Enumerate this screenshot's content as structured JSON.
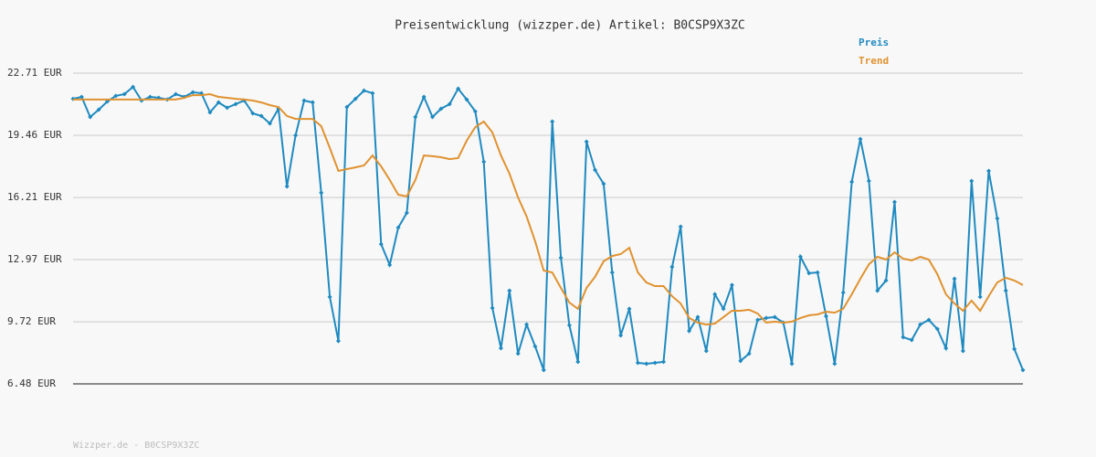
{
  "chart_data": {
    "type": "line",
    "title": "Preisentwicklung (wizzper.de) Artikel: B0CSP9X3ZC",
    "footer": "Wizzper.de - B0CSP9X3ZC",
    "ylim": [
      6.48,
      22.71
    ],
    "yticks": [
      {
        "value": 6.48,
        "label": "6.48 EUR"
      },
      {
        "value": 9.72,
        "label": "9.72 EUR"
      },
      {
        "value": 12.97,
        "label": "12.97 EUR"
      },
      {
        "value": 16.21,
        "label": "16.21 EUR"
      },
      {
        "value": 19.46,
        "label": "19.46 EUR"
      },
      {
        "value": 22.71,
        "label": "22.71 EUR"
      }
    ],
    "grid": true,
    "legend": "top-right",
    "series": [
      {
        "name": "Preis",
        "color": "#1f8ac0",
        "markers": true,
        "values": [
          21.37,
          21.47,
          20.42,
          20.8,
          21.23,
          21.52,
          21.61,
          21.99,
          21.28,
          21.47,
          21.42,
          21.33,
          21.61,
          21.47,
          21.71,
          21.66,
          20.66,
          21.18,
          20.9,
          21.09,
          21.28,
          20.61,
          20.47,
          20.08,
          20.85,
          16.79,
          19.46,
          21.28,
          21.18,
          16.46,
          11.02,
          8.72,
          20.94,
          21.37,
          21.8,
          21.66,
          13.78,
          12.69,
          14.64,
          15.41,
          20.42,
          21.47,
          20.42,
          20.85,
          21.09,
          21.9,
          21.33,
          20.71,
          18.08,
          10.44,
          8.34,
          11.35,
          8.06,
          9.58,
          8.44,
          7.2,
          20.18,
          13.07,
          9.54,
          7.63,
          19.13,
          17.65,
          16.93,
          12.3,
          9.01,
          10.4,
          7.58,
          7.53,
          7.58,
          7.63,
          12.59,
          14.69,
          9.25,
          9.97,
          8.2,
          11.16,
          10.4,
          11.64,
          7.68,
          8.06,
          9.82,
          9.92,
          9.97,
          9.68,
          7.53,
          13.12,
          12.26,
          12.3,
          10.01,
          7.53,
          11.25,
          17.03,
          19.27,
          17.08,
          11.35,
          11.88,
          15.98,
          8.92,
          8.77,
          9.58,
          9.82,
          9.35,
          8.34,
          11.97,
          8.2,
          17.08,
          11.02,
          17.6,
          15.12,
          11.35,
          8.3,
          7.2
        ]
      },
      {
        "name": "Trend",
        "color": "#e0922f",
        "markers": false,
        "values": [
          21.33,
          21.33,
          21.33,
          21.33,
          21.33,
          21.33,
          21.33,
          21.33,
          21.33,
          21.33,
          21.33,
          21.33,
          21.33,
          21.42,
          21.56,
          21.56,
          21.61,
          21.47,
          21.42,
          21.37,
          21.33,
          21.28,
          21.18,
          21.04,
          20.94,
          20.47,
          20.32,
          20.32,
          20.32,
          19.94,
          18.8,
          17.6,
          17.7,
          17.79,
          17.89,
          18.41,
          17.84,
          17.13,
          16.36,
          16.27,
          17.13,
          18.41,
          18.37,
          18.32,
          18.22,
          18.27,
          19.18,
          19.89,
          20.18,
          19.61,
          18.41,
          17.46,
          16.22,
          15.22,
          13.93,
          12.4,
          12.3,
          11.49,
          10.73,
          10.4,
          11.49,
          12.07,
          12.88,
          13.16,
          13.26,
          13.59,
          12.3,
          11.78,
          11.59,
          11.59,
          11.06,
          10.68,
          9.92,
          9.68,
          9.58,
          9.63,
          9.97,
          10.3,
          10.3,
          10.35,
          10.16,
          9.68,
          9.73,
          9.68,
          9.73,
          9.92,
          10.06,
          10.11,
          10.25,
          10.2,
          10.4,
          11.16,
          11.97,
          12.73,
          13.12,
          12.97,
          13.35,
          13.02,
          12.93,
          13.12,
          12.97,
          12.21,
          11.16,
          10.68,
          10.3,
          10.83,
          10.3,
          11.06,
          11.78,
          12.02,
          11.88,
          11.64
        ]
      }
    ]
  }
}
